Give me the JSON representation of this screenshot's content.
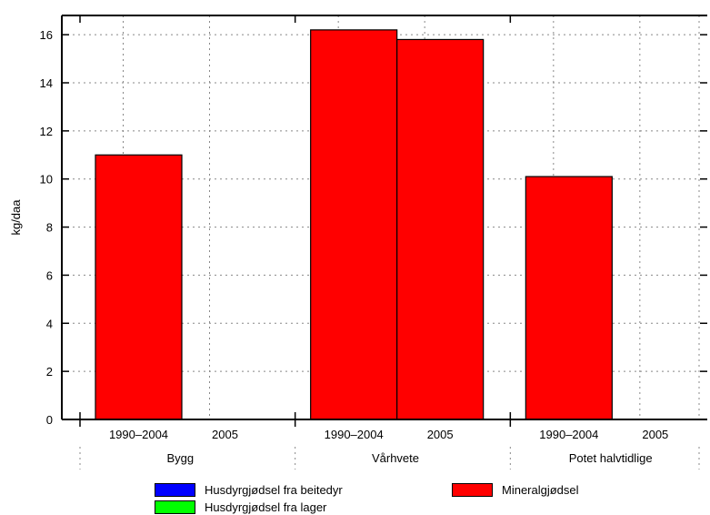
{
  "chart_data": {
    "type": "bar",
    "ylabel": "kg/daa",
    "xlabel": "",
    "title": "",
    "ylim": [
      0,
      16.8
    ],
    "yticks": [
      0,
      2,
      4,
      6,
      8,
      10,
      12,
      14,
      16
    ],
    "grid": true,
    "groups": [
      {
        "name": "Bygg",
        "bars": [
          {
            "label": "1990–2004",
            "segments": [
              {
                "series": "Mineralgjødsel",
                "value": 11.0
              }
            ]
          },
          {
            "label": "2005",
            "segments": []
          }
        ]
      },
      {
        "name": "Vårhvete",
        "bars": [
          {
            "label": "1990–2004",
            "segments": [
              {
                "series": "Mineralgjødsel",
                "value": 16.2
              }
            ]
          },
          {
            "label": "2005",
            "segments": [
              {
                "series": "Mineralgjødsel",
                "value": 15.8
              }
            ]
          }
        ]
      },
      {
        "name": "Potet halvtidlige",
        "bars": [
          {
            "label": "1990–2004",
            "segments": [
              {
                "series": "Mineralgjødsel",
                "value": 10.1
              }
            ]
          },
          {
            "label": "2005",
            "segments": []
          }
        ]
      }
    ],
    "series": [
      {
        "name": "Husdyrgjødsel fra beitedyr",
        "color": "#0000ff"
      },
      {
        "name": "Husdyrgjødsel fra lager",
        "color": "#00ff00"
      },
      {
        "name": "Mineralgjødsel",
        "color": "#ff0000"
      }
    ]
  },
  "legend": {
    "items": [
      {
        "label": "Husdyrgjødsel fra beitedyr",
        "color": "#0000ff"
      },
      {
        "label": "Husdyrgjødsel fra lager",
        "color": "#00ff00"
      },
      {
        "label": "Mineralgjødsel",
        "color": "#ff0000"
      }
    ]
  }
}
